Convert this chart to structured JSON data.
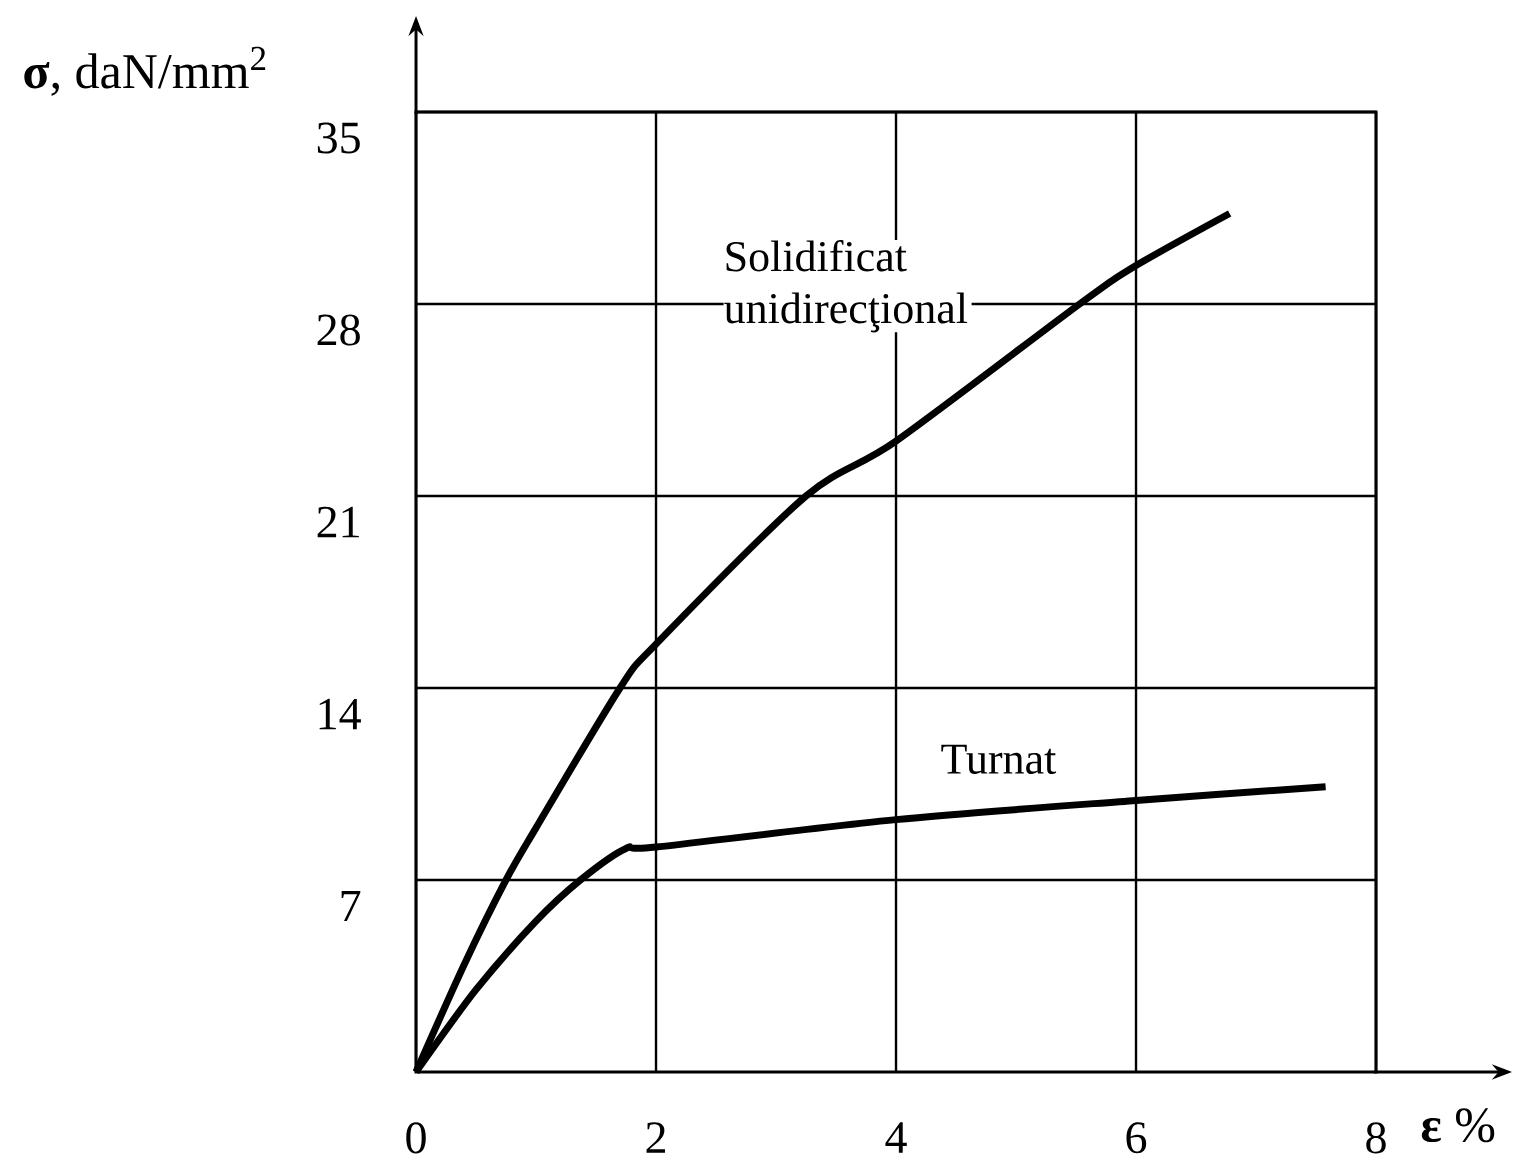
{
  "chart_data": {
    "type": "line",
    "xlabel": "**ε** %",
    "ylabel": "**σ**, daN/mm$^{2}$",
    "xlim": [
      0,
      8
    ],
    "ylim": [
      0,
      35
    ],
    "xticks": [
      0,
      2,
      4,
      6,
      8
    ],
    "yticks": [
      7,
      14,
      21,
      28,
      35
    ],
    "grid": true,
    "series": [
      {
        "name": "Solidificat unidirecţional",
        "color": "#000000",
        "x": [
          0,
          0.4,
          0.75,
          1,
          1.7,
          2,
          3.25,
          4,
          5.53,
          6,
          6.78
        ],
        "values": [
          0,
          3.9,
          7,
          8.9,
          14,
          15.6,
          21,
          23,
          28,
          29.4,
          31.3
        ]
      },
      {
        "name": "Turnat",
        "color": "#000000",
        "x": [
          0,
          0.5,
          1,
          1.37,
          1.75,
          2,
          4,
          6,
          7.58
        ],
        "values": [
          0,
          3,
          5.5,
          7,
          8.15,
          8.2,
          9.2,
          9.9,
          10.4
        ]
      }
    ]
  }
}
